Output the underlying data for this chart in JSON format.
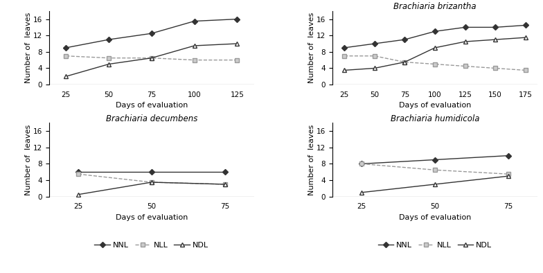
{
  "plots": [
    {
      "title": "",
      "title_style": "normal",
      "x": [
        25,
        50,
        75,
        100,
        125
      ],
      "NNL": [
        9,
        11,
        12.5,
        15.5,
        16
      ],
      "NLL": [
        7,
        6.5,
        6.5,
        6,
        6
      ],
      "NDL": [
        2,
        5,
        6.5,
        9.5,
        10
      ],
      "xlim": [
        15,
        135
      ],
      "xticks": [
        25,
        50,
        75,
        100,
        125
      ]
    },
    {
      "title": "Brachiaria brizantha",
      "title_style": "italic",
      "x": [
        25,
        50,
        75,
        100,
        125,
        150,
        175
      ],
      "NNL": [
        9,
        10,
        11,
        13,
        14,
        14,
        14.5
      ],
      "NLL": [
        7,
        7,
        5.5,
        5,
        4.5,
        4,
        3.5
      ],
      "NDL": [
        3.5,
        4,
        5.5,
        9,
        10.5,
        11,
        11.5
      ],
      "xlim": [
        15,
        185
      ],
      "xticks": [
        25,
        50,
        75,
        100,
        125,
        150,
        175
      ]
    },
    {
      "title": "Brachiaria decumbens",
      "title_style": "italic",
      "x": [
        25,
        50,
        75
      ],
      "NNL": [
        6,
        6,
        6
      ],
      "NLL": [
        5.5,
        3.5,
        3
      ],
      "NDL": [
        0.5,
        3.5,
        3
      ],
      "xlim": [
        15,
        85
      ],
      "xticks": [
        25,
        50,
        75
      ]
    },
    {
      "title": "Brachiaria humidicola",
      "title_style": "italic",
      "x": [
        25,
        50,
        75
      ],
      "NNL": [
        8,
        9,
        10
      ],
      "NLL": [
        8,
        6.5,
        5.5
      ],
      "NDL": [
        1,
        3,
        5
      ],
      "xlim": [
        15,
        85
      ],
      "xticks": [
        25,
        50,
        75
      ]
    }
  ],
  "ylabel": "Number of  leaves",
  "xlabel": "Days of evaluation",
  "ylim": [
    0,
    18
  ],
  "yticks": [
    0,
    4,
    8,
    12,
    16
  ],
  "color_NNL": "#333333",
  "color_NLL": "#999999",
  "color_NDL": "#333333",
  "legend_labels": [
    "NNL",
    "NLL",
    "NDL"
  ]
}
